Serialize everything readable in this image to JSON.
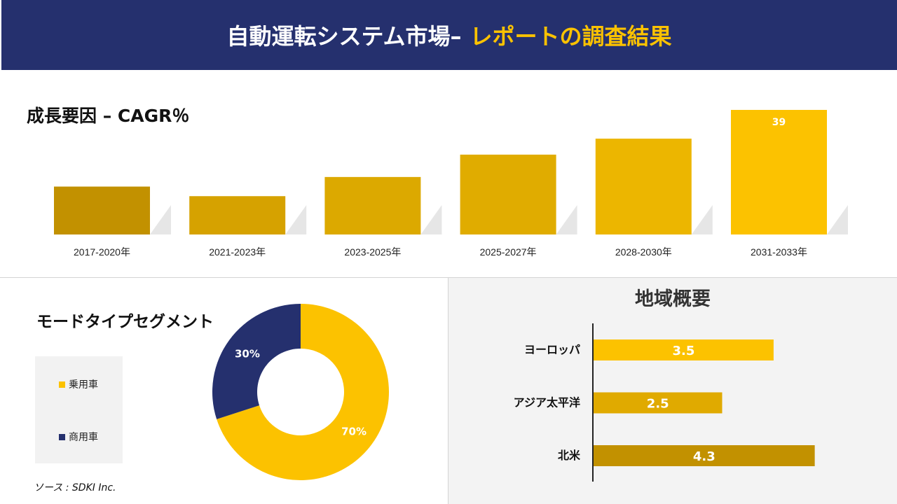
{
  "header": {
    "title_main": "自動運転システム市場–",
    "title_accent": "レポートの調査結果"
  },
  "cagr_section": {
    "title": "成長要因 – CAGR％"
  },
  "mode_section": {
    "title": "モードタイプセグメント"
  },
  "region_section": {
    "title": "地域概要"
  },
  "source": "ソース : SDKI Inc.",
  "colors": {
    "navy": "#25306e",
    "gold": "#fcc200",
    "gold_mid": "#e0aa00",
    "gold_dark": "#c29100"
  },
  "chart_data": [
    {
      "type": "bar",
      "title": "成長要因 – CAGR％",
      "categories": [
        "2017-2020年",
        "2021-2023年",
        "2023-2025年",
        "2025-2027年",
        "2028-2030年",
        "2031-2033年"
      ],
      "values": [
        15,
        12,
        18,
        25,
        30,
        39
      ],
      "data_labels": [
        "",
        "",
        "",
        "",
        "",
        "39"
      ],
      "colors": [
        "#c29100",
        "#d6a200",
        "#dca900",
        "#e0ac00",
        "#ecb600",
        "#fcc200"
      ],
      "ylim": [
        0,
        39
      ],
      "grid": false
    },
    {
      "type": "pie",
      "title": "モードタイプセグメント",
      "labels": [
        "乗用車",
        "商用車"
      ],
      "values": [
        70,
        30
      ],
      "data_labels": [
        "70%",
        "30%"
      ],
      "colors": [
        "#fcc200",
        "#25306e"
      ],
      "legend": "left"
    },
    {
      "type": "bar",
      "title": "地域概要",
      "orientation": "horizontal",
      "categories": [
        "ヨーロッパ",
        "アジア太平洋",
        "北米"
      ],
      "values": [
        3.5,
        2.5,
        4.3
      ],
      "data_labels": [
        "3.5",
        "2.5",
        "4.3"
      ],
      "colors": [
        "#fcc200",
        "#e0aa00",
        "#c29100"
      ],
      "xlim": [
        0,
        5
      ]
    }
  ]
}
